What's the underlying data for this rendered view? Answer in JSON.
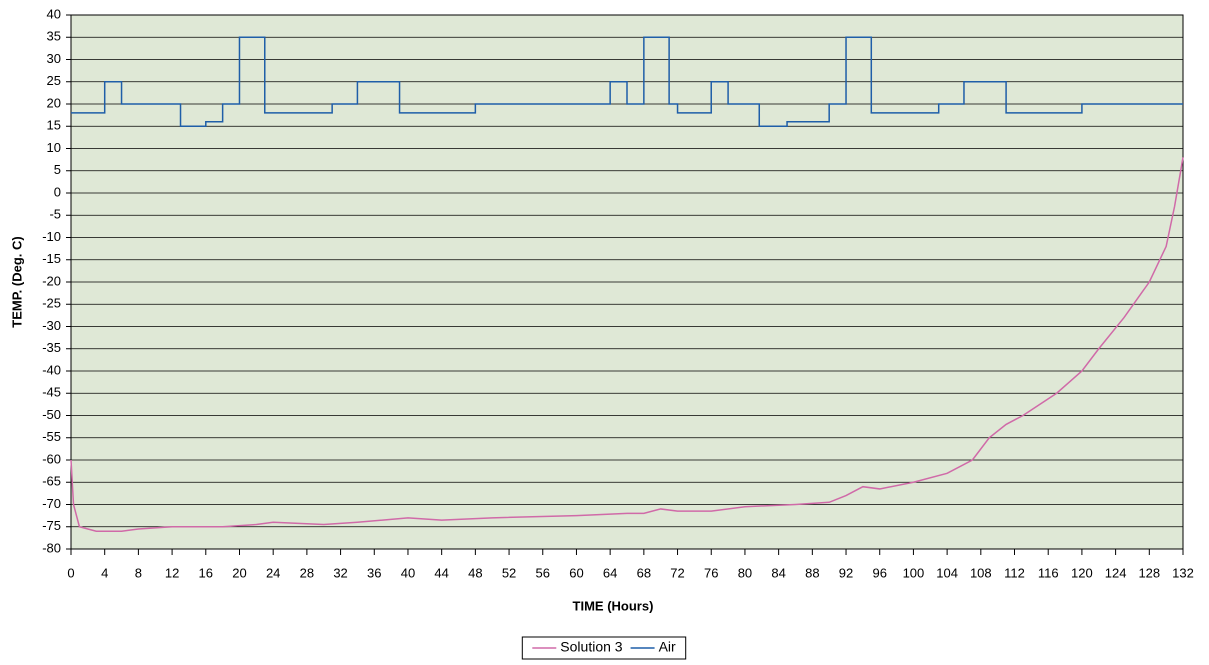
{
  "chart_data": {
    "type": "line",
    "xlabel": "TIME (Hours)",
    "ylabel": "TEMP. (Deg. C)",
    "xlim": [
      0,
      132
    ],
    "xticks": [
      0,
      4,
      8,
      12,
      16,
      20,
      24,
      28,
      32,
      36,
      40,
      44,
      48,
      52,
      56,
      60,
      64,
      68,
      72,
      76,
      80,
      84,
      88,
      92,
      96,
      100,
      104,
      108,
      112,
      116,
      120,
      124,
      128,
      132
    ],
    "ylim": [
      -80,
      40
    ],
    "yticks": [
      -80,
      -75,
      -70,
      -65,
      -60,
      -55,
      -50,
      -45,
      -40,
      -35,
      -30,
      -25,
      -20,
      -15,
      -10,
      -5,
      0,
      5,
      10,
      15,
      20,
      25,
      30,
      35,
      40
    ],
    "grid": true,
    "legend": "bottom",
    "background": "#dfe8d6",
    "series": [
      {
        "name": "Solution 3",
        "color": "#d06aa8",
        "x": [
          0,
          0.3,
          1,
          3,
          6,
          8,
          12,
          18,
          22,
          24,
          30,
          34,
          40,
          44,
          50,
          60,
          66,
          68,
          70,
          72,
          76,
          80,
          86,
          90,
          92,
          94,
          96,
          100,
          104,
          107,
          109,
          111,
          113,
          117,
          120,
          122,
          125,
          128,
          130,
          131,
          132
        ],
        "values": [
          -60,
          -70,
          -75,
          -76,
          -76,
          -75.5,
          -75,
          -75,
          -74.5,
          -74,
          -74.5,
          -74,
          -73,
          -73.5,
          -73,
          -72.5,
          -72,
          -72,
          -71,
          -71.5,
          -71.5,
          -70.5,
          -70,
          -69.5,
          -68,
          -66,
          -66.5,
          -65,
          -63,
          -60,
          -55,
          -52,
          -50,
          -45,
          -40,
          -35,
          -28,
          -20,
          -12,
          -3,
          8
        ]
      },
      {
        "name": "Air",
        "color": "#1f5ea8",
        "x": [
          0,
          4,
          4,
          6,
          6,
          13,
          13,
          16,
          16,
          18,
          18,
          20,
          20,
          23,
          23,
          31,
          31,
          34,
          34,
          39,
          39,
          48,
          48,
          64,
          64,
          66,
          66,
          68,
          68,
          71,
          71,
          72,
          72,
          76,
          76,
          78,
          78,
          81.7,
          81.7,
          85,
          85,
          90,
          90,
          92,
          92,
          95,
          95,
          103,
          103,
          106,
          106,
          111,
          111,
          120,
          120,
          132
        ],
        "values": [
          18,
          18,
          25,
          25,
          20,
          20,
          15,
          15,
          16,
          16,
          20,
          20,
          35,
          35,
          18,
          18,
          20,
          20,
          25,
          25,
          18,
          18,
          20,
          20,
          25,
          25,
          20,
          20,
          35,
          35,
          20,
          20,
          18,
          18,
          25,
          25,
          20,
          20,
          15,
          15,
          16,
          16,
          20,
          20,
          35,
          35,
          18,
          18,
          20,
          20,
          25,
          25,
          18,
          18,
          20,
          20
        ]
      }
    ]
  }
}
